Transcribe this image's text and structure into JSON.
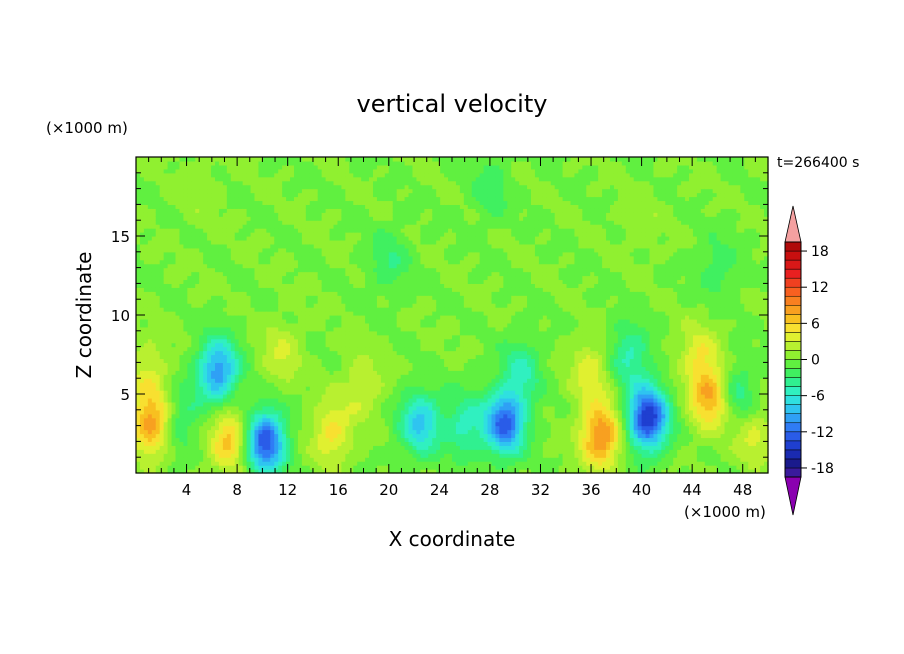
{
  "chart_data": {
    "type": "heatmap",
    "title": "vertical velocity",
    "xlabel": "X coordinate",
    "ylabel": "Z coordinate",
    "x_unit": "(×1000 m)",
    "y_unit": "(×1000 m)",
    "time_label": "t=266400 s",
    "xlim": [
      0,
      50
    ],
    "ylim": [
      0,
      20
    ],
    "x_ticks": [
      4,
      8,
      12,
      16,
      20,
      24,
      28,
      32,
      36,
      40,
      44,
      48
    ],
    "y_ticks": [
      5,
      10,
      15
    ],
    "x_tick_labels": [
      "4",
      "8",
      "12",
      "16",
      "20",
      "24",
      "28",
      "32",
      "36",
      "40",
      "44",
      "48"
    ],
    "y_tick_labels": [
      "5",
      "10",
      "15"
    ],
    "colorbar": {
      "levels": [
        -21,
        -19.5,
        -18,
        -16.5,
        -15,
        -13.5,
        -12,
        -10.5,
        -9,
        -7.5,
        -6,
        -4.5,
        -3,
        -1.5,
        0,
        1.5,
        3,
        4.5,
        6,
        7.5,
        9,
        10.5,
        12,
        13.5,
        15,
        16.5,
        18,
        19.5,
        21
      ],
      "colors": [
        "#6a0dad",
        "#3a1a9c",
        "#1a1a8c",
        "#1a2ab0",
        "#1f3fd0",
        "#2a5ce8",
        "#2f7cf5",
        "#2fa0f5",
        "#2fc4f0",
        "#2fe0e0",
        "#30f0c0",
        "#30f090",
        "#40f060",
        "#60f040",
        "#90f030",
        "#b8f030",
        "#e0f030",
        "#f8e030",
        "#f8c020",
        "#f8a020",
        "#f88020",
        "#f86020",
        "#f04020",
        "#e82020",
        "#d81818",
        "#c80f0f",
        "#b00a0a",
        "#a00505"
      ],
      "tick_values": [
        18,
        12,
        6,
        0,
        -6,
        -12,
        -18
      ],
      "tick_labels": [
        "18",
        "12",
        "6",
        "0",
        "-6",
        "-12",
        "-18"
      ],
      "over_color": "#f4a0a0",
      "under_color": "#8a00b0"
    },
    "features": [
      {
        "x": 1.2,
        "z": 3.2,
        "w": 8.5
      },
      {
        "x": 1.0,
        "z": 6.5,
        "w": 3.0
      },
      {
        "x": 6.5,
        "z": 6.5,
        "w": -10.5
      },
      {
        "x": 7.5,
        "z": 2.2,
        "w": 7.0
      },
      {
        "x": 10.2,
        "z": 2.0,
        "w": -13.5
      },
      {
        "x": 15.5,
        "z": 2.6,
        "w": 5.0
      },
      {
        "x": 11.5,
        "z": 7.5,
        "w": 3.0
      },
      {
        "x": 18.0,
        "z": 5.5,
        "w": 3.0
      },
      {
        "x": 22.5,
        "z": 3.2,
        "w": -8.0
      },
      {
        "x": 26.0,
        "z": 3.0,
        "w": -5.0
      },
      {
        "x": 29.2,
        "z": 3.2,
        "w": -12.5
      },
      {
        "x": 30.5,
        "z": 6.5,
        "w": -4.5
      },
      {
        "x": 36.8,
        "z": 2.4,
        "w": 9.5
      },
      {
        "x": 36.0,
        "z": 6.5,
        "w": 4.0
      },
      {
        "x": 40.5,
        "z": 3.5,
        "w": -15.0
      },
      {
        "x": 39.0,
        "z": 7.5,
        "w": -5.0
      },
      {
        "x": 45.5,
        "z": 4.8,
        "w": 8.0
      },
      {
        "x": 44.5,
        "z": 7.5,
        "w": 4.0
      },
      {
        "x": 48.8,
        "z": 2.5,
        "w": 3.5
      },
      {
        "x": 47.5,
        "z": 5.0,
        "w": -4.5
      },
      {
        "x": 3.5,
        "z": 3.5,
        "w": -3.5
      },
      {
        "x": 20.0,
        "z": 13.5,
        "w": -3.0
      },
      {
        "x": 28.0,
        "z": 18.0,
        "w": -2.5
      },
      {
        "x": 46.0,
        "z": 13.0,
        "w": -2.5
      },
      {
        "x": 5.0,
        "z": 18.0,
        "w": 1.2
      },
      {
        "x": 40.0,
        "z": 16.0,
        "w": 1.2
      }
    ]
  }
}
